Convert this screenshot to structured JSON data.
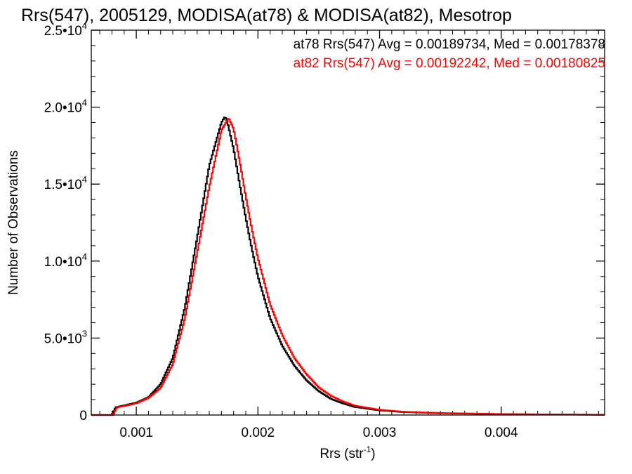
{
  "chart_data": {
    "type": "line",
    "title": "Rrs(547), 2005129, MODISA(at78) & MODISA(at82), Mesotrop",
    "xlabel": "Rrs (str",
    "xlabel_sup": "-1",
    "xlabel_close": ")",
    "ylabel": "Number of Observations",
    "xlim": [
      0.00063,
      0.00485
    ],
    "ylim": [
      0,
      25000
    ],
    "x_ticks": [
      0.001,
      0.002,
      0.003,
      0.004
    ],
    "x_tick_labels": [
      "0.001",
      "0.002",
      "0.003",
      "0.004"
    ],
    "y_ticks": [
      0,
      5000,
      10000,
      15000,
      20000,
      25000
    ],
    "y_tick_labels": [
      {
        "mant": "0",
        "exp": ""
      },
      {
        "mant": "5.0•10",
        "exp": "3"
      },
      {
        "mant": "1.0•10",
        "exp": "4"
      },
      {
        "mant": "1.5•10",
        "exp": "4"
      },
      {
        "mant": "2.0•10",
        "exp": "4"
      },
      {
        "mant": "2.5•10",
        "exp": "4"
      }
    ],
    "grid": false,
    "legend_position": "top-right",
    "annotations": [
      "at78 Rrs(547) Avg = 0.00189734, Med = 0.00178378",
      "at82 Rrs(547) Avg = 0.00192242, Med = 0.00180825"
    ],
    "series": [
      {
        "name": "at78",
        "color": "#000000",
        "points": [
          [
            0.00063,
            0
          ],
          [
            0.0008,
            0
          ],
          [
            0.00083,
            500
          ],
          [
            0.0009,
            620
          ],
          [
            0.001,
            800
          ],
          [
            0.0011,
            1150
          ],
          [
            0.0012,
            2000
          ],
          [
            0.0013,
            3700
          ],
          [
            0.0014,
            7000
          ],
          [
            0.0015,
            11500
          ],
          [
            0.0016,
            16200
          ],
          [
            0.0017,
            19000
          ],
          [
            0.00173,
            19400
          ],
          [
            0.00175,
            19000
          ],
          [
            0.0018,
            17300
          ],
          [
            0.00185,
            15000
          ],
          [
            0.0019,
            12800
          ],
          [
            0.00195,
            10800
          ],
          [
            0.002,
            9000
          ],
          [
            0.0021,
            6300
          ],
          [
            0.0022,
            4500
          ],
          [
            0.0023,
            3200
          ],
          [
            0.0024,
            2250
          ],
          [
            0.0025,
            1550
          ],
          [
            0.0026,
            1050
          ],
          [
            0.0027,
            750
          ],
          [
            0.0028,
            520
          ],
          [
            0.003,
            300
          ],
          [
            0.0032,
            190
          ],
          [
            0.0035,
            120
          ],
          [
            0.004,
            60
          ],
          [
            0.0045,
            30
          ],
          [
            0.00485,
            15
          ]
        ]
      },
      {
        "name": "at82",
        "color": "#ff0000",
        "points": [
          [
            0.00063,
            0
          ],
          [
            0.00081,
            0
          ],
          [
            0.00084,
            500
          ],
          [
            0.0009,
            580
          ],
          [
            0.001,
            760
          ],
          [
            0.0011,
            1100
          ],
          [
            0.0012,
            1750
          ],
          [
            0.0013,
            3300
          ],
          [
            0.0014,
            6300
          ],
          [
            0.0015,
            10500
          ],
          [
            0.0016,
            14800
          ],
          [
            0.0017,
            18500
          ],
          [
            0.00176,
            19300
          ],
          [
            0.0018,
            18600
          ],
          [
            0.00185,
            16500
          ],
          [
            0.0019,
            14200
          ],
          [
            0.00195,
            12100
          ],
          [
            0.002,
            10200
          ],
          [
            0.0021,
            7200
          ],
          [
            0.0022,
            5200
          ],
          [
            0.0023,
            3700
          ],
          [
            0.0024,
            2650
          ],
          [
            0.0025,
            1800
          ],
          [
            0.0026,
            1250
          ],
          [
            0.0027,
            880
          ],
          [
            0.0028,
            600
          ],
          [
            0.003,
            340
          ],
          [
            0.0032,
            210
          ],
          [
            0.0035,
            130
          ],
          [
            0.004,
            65
          ],
          [
            0.0045,
            32
          ],
          [
            0.00485,
            16
          ]
        ]
      }
    ]
  }
}
